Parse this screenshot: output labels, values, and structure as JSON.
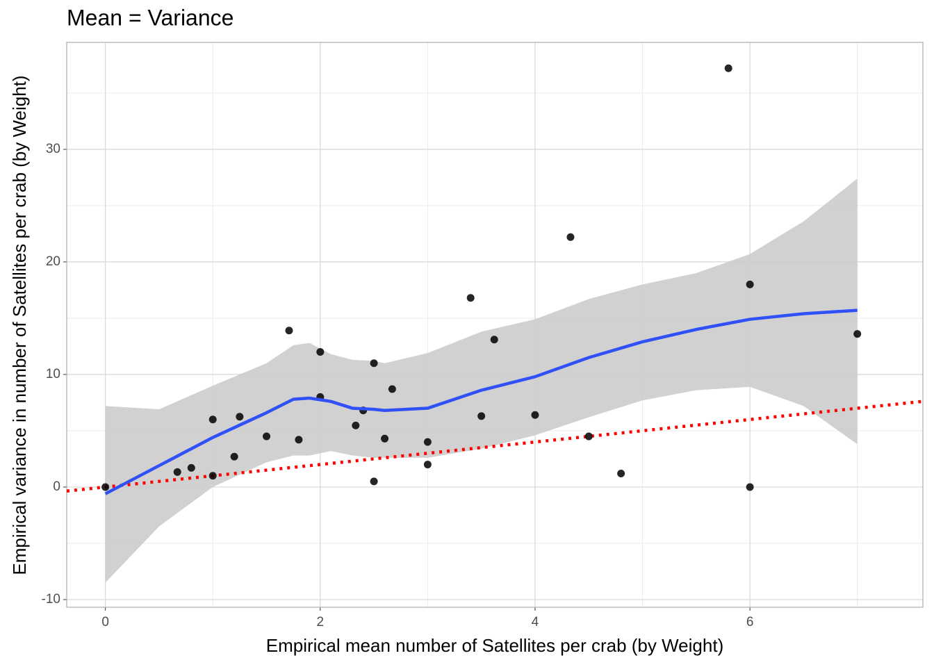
{
  "chart_data": {
    "type": "scatter",
    "title": "Mean = Variance",
    "x_label": "Empirical mean number of Satellites per crab (by Weight)",
    "y_label": "Empirical variance in number of Satellites per crab (by Weight)",
    "xlim": [
      -0.36,
      7.61
    ],
    "ylim": [
      -10.68,
      39.5
    ],
    "xticks": [
      0,
      2,
      4,
      6
    ],
    "yticks": [
      -10,
      0,
      10,
      20,
      30
    ],
    "x_minor_ticks": [
      1,
      3,
      5,
      7
    ],
    "y_minor_ticks": [
      -5,
      5,
      15,
      25,
      35
    ],
    "grid": true,
    "points": {
      "color": "#000000",
      "x": [
        0,
        0.67,
        0.8,
        1,
        1,
        1.2,
        1.25,
        1.5,
        1.71,
        1.8,
        2,
        2,
        2.33,
        2.4,
        2.5,
        2.5,
        2.6,
        2.67,
        3,
        3,
        3.4,
        3.5,
        3.62,
        4,
        4.33,
        4.5,
        4.8,
        5.8,
        6,
        6,
        7
      ],
      "y": [
        0,
        1.33,
        1.7,
        6,
        1,
        2.7,
        6.25,
        4.5,
        13.9,
        4.2,
        12,
        8,
        5.47,
        6.8,
        11,
        0.5,
        4.3,
        8.7,
        4,
        2,
        16.8,
        6.3,
        13.1,
        6.4,
        22.2,
        4.5,
        1.2,
        37.2,
        18,
        0,
        13.6
      ]
    },
    "smooth": {
      "color": "#3050f8",
      "band_color": "#cccccc",
      "x": [
        0,
        0.5,
        1,
        1.5,
        1.75,
        1.9,
        2.1,
        2.3,
        2.5,
        2.6,
        3,
        3.5,
        4,
        4.5,
        5,
        5.5,
        6,
        6.5,
        7
      ],
      "y": [
        -0.6,
        1.9,
        4.4,
        6.6,
        7.8,
        7.9,
        7.6,
        7.0,
        6.9,
        6.8,
        7.0,
        8.6,
        9.8,
        11.5,
        12.9,
        14.0,
        14.9,
        15.4,
        15.7
      ],
      "upper": [
        7.2,
        6.9,
        9.0,
        11.0,
        12.6,
        12.8,
        11.8,
        11.3,
        11.2,
        11.0,
        11.9,
        13.8,
        14.9,
        16.7,
        18.0,
        19.0,
        20.7,
        23.6,
        27.4
      ],
      "lower": [
        -8.5,
        -3.5,
        0.0,
        2.2,
        2.8,
        2.8,
        3.2,
        2.8,
        2.6,
        2.6,
        2.6,
        3.4,
        4.6,
        6.2,
        7.7,
        8.6,
        8.9,
        7.2,
        3.8
      ]
    },
    "reference_line": {
      "slope": 1,
      "intercept": 0,
      "color": "#ff0000"
    }
  }
}
